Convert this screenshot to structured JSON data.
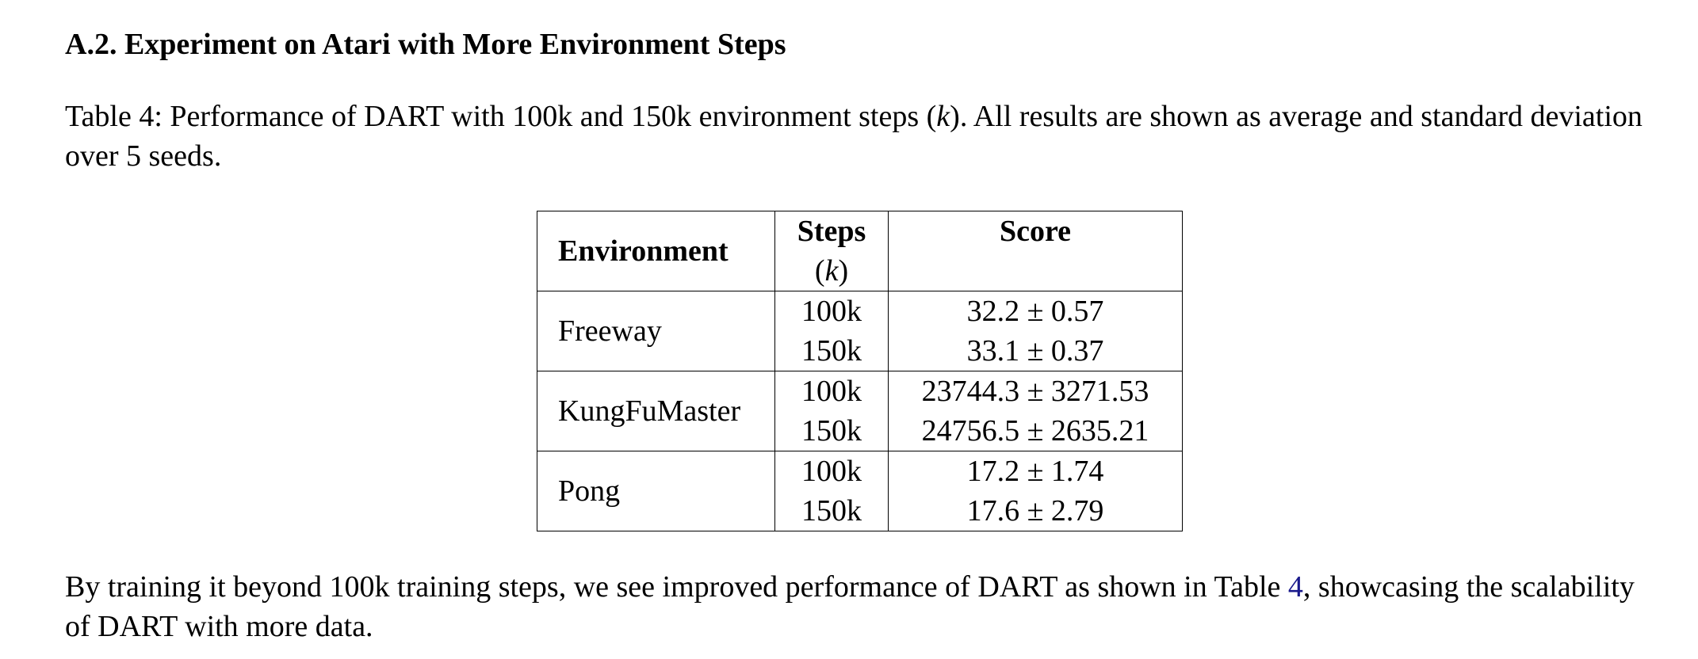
{
  "section": {
    "heading": "A.2. Experiment on Atari with More Environment Steps"
  },
  "caption": {
    "label": "Table 4:",
    "text_before_var": "Performance of DART with 100k and 150k environment steps (",
    "var": "k",
    "text_after_var": "). All results are shown as average and standard deviation over 5 seeds."
  },
  "table": {
    "headers": {
      "environment": "Environment",
      "steps": "Steps",
      "steps_unit_open": "(",
      "steps_unit_var": "k",
      "steps_unit_close": ")",
      "score": "Score"
    },
    "groups": [
      {
        "environment": "Freeway",
        "rows": [
          {
            "steps": "100k",
            "score": "32.2 ± 0.57"
          },
          {
            "steps": "150k",
            "score": "33.1 ± 0.37"
          }
        ]
      },
      {
        "environment": "KungFuMaster",
        "rows": [
          {
            "steps": "100k",
            "score": "23744.3 ± 3271.53"
          },
          {
            "steps": "150k",
            "score": "24756.5 ± 2635.21"
          }
        ]
      },
      {
        "environment": "Pong",
        "rows": [
          {
            "steps": "100k",
            "score": "17.2 ± 1.74"
          },
          {
            "steps": "150k",
            "score": "17.6 ± 2.79"
          }
        ]
      }
    ]
  },
  "body": {
    "text_before_ref": "By training it beyond 100k training steps, we see improved performance of DART as shown in Table ",
    "ref": "4",
    "text_after_ref": ", showcasing the scalability of DART with more data."
  }
}
